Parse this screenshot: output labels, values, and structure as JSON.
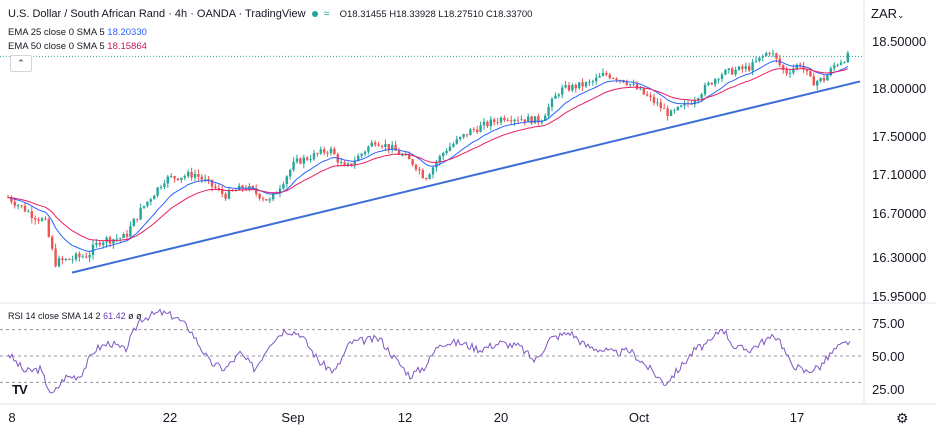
{
  "header": {
    "title": "U.S. Dollar / South African Rand · 4h · OANDA · TradingView",
    "market_icon": "market-open-dot-icon",
    "ohlc_o": "O18.31455",
    "ohlc_h": "H18.33928",
    "ohlc_l": "L18.27510",
    "ohlc_c": "C18.33700"
  },
  "indicators": {
    "ema1_label": "EMA 25 close 0 SMA 5",
    "ema1_value": "18.20330",
    "ema2_label": "EMA 50 close 0 SMA 5",
    "ema2_value": "18.15864",
    "rsi_label": "RSI 14 close SMA 14 2",
    "rsi_value": "61.42",
    "rsi_extra": "ø ø"
  },
  "currency": "ZAR",
  "currency_menu_icon": "chevron-down-icon",
  "collapse_icon": "chevron-up-icon",
  "logo_text": "TV",
  "settings_icon": "gear-icon",
  "colors": {
    "up": "#26a69a",
    "down": "#ef5350",
    "ema25": "#2962ff",
    "ema50": "#e91e63",
    "trendline": "#3c6fd6",
    "rsi": "#7e57c2"
  },
  "chart_data": [
    {
      "type": "candlestick",
      "title": "U.S. Dollar / South African Rand · 4h · OANDA · TradingView",
      "y_ticks": [
        "18.50000",
        "18.00000",
        "17.50000",
        "17.10000",
        "16.70000",
        "16.30000",
        "15.95000"
      ],
      "x_ticks": [
        "8",
        "22",
        "Sep",
        "12",
        "20",
        "Oct",
        "17"
      ],
      "ylim": [
        15.95,
        18.55
      ],
      "last_price_line": 18.337,
      "close_path": [
        {
          "x": 8,
          "close": 16.86
        },
        {
          "x": 30,
          "close": 16.7
        },
        {
          "x": 45,
          "close": 16.62
        },
        {
          "x": 55,
          "close": 16.25
        },
        {
          "x": 70,
          "close": 16.28
        },
        {
          "x": 88,
          "close": 16.32
        },
        {
          "x": 100,
          "close": 16.45
        },
        {
          "x": 125,
          "close": 16.48
        },
        {
          "x": 140,
          "close": 16.72
        },
        {
          "x": 165,
          "close": 17.05
        },
        {
          "x": 195,
          "close": 17.1
        },
        {
          "x": 225,
          "close": 16.88
        },
        {
          "x": 245,
          "close": 16.97
        },
        {
          "x": 270,
          "close": 16.82
        },
        {
          "x": 295,
          "close": 17.22
        },
        {
          "x": 330,
          "close": 17.36
        },
        {
          "x": 345,
          "close": 17.15
        },
        {
          "x": 375,
          "close": 17.45
        },
        {
          "x": 390,
          "close": 17.38
        },
        {
          "x": 415,
          "close": 17.2
        },
        {
          "x": 425,
          "close": 17.06
        },
        {
          "x": 445,
          "close": 17.35
        },
        {
          "x": 470,
          "close": 17.55
        },
        {
          "x": 505,
          "close": 17.7
        },
        {
          "x": 540,
          "close": 17.66
        },
        {
          "x": 560,
          "close": 17.98
        },
        {
          "x": 590,
          "close": 18.05
        },
        {
          "x": 605,
          "close": 18.15
        },
        {
          "x": 625,
          "close": 18.08
        },
        {
          "x": 655,
          "close": 17.85
        },
        {
          "x": 670,
          "close": 17.72
        },
        {
          "x": 690,
          "close": 17.85
        },
        {
          "x": 720,
          "close": 18.15
        },
        {
          "x": 750,
          "close": 18.22
        },
        {
          "x": 770,
          "close": 18.4
        },
        {
          "x": 785,
          "close": 18.16
        },
        {
          "x": 800,
          "close": 18.26
        },
        {
          "x": 812,
          "close": 18.06
        },
        {
          "x": 825,
          "close": 18.1
        },
        {
          "x": 835,
          "close": 18.25
        },
        {
          "x": 848,
          "close": 18.337
        }
      ],
      "trendline": [
        {
          "x": 72,
          "y": 16.16
        },
        {
          "x": 860,
          "y": 18.07
        }
      ]
    },
    {
      "type": "line",
      "title": "RSI 14 close SMA 14 2",
      "y_ticks": [
        "75.00",
        "50.00",
        "25.00"
      ],
      "ylim": [
        15,
        90
      ],
      "bands": [
        70,
        50,
        30
      ],
      "series": [
        {
          "values": [
            {
              "x": 8,
              "v": 52
            },
            {
              "x": 25,
              "v": 38
            },
            {
              "x": 40,
              "v": 40
            },
            {
              "x": 52,
              "v": 20
            },
            {
              "x": 65,
              "v": 34
            },
            {
              "x": 80,
              "v": 35
            },
            {
              "x": 95,
              "v": 55
            },
            {
              "x": 110,
              "v": 60
            },
            {
              "x": 125,
              "v": 54
            },
            {
              "x": 140,
              "v": 78
            },
            {
              "x": 160,
              "v": 83
            },
            {
              "x": 175,
              "v": 80
            },
            {
              "x": 190,
              "v": 70
            },
            {
              "x": 210,
              "v": 45
            },
            {
              "x": 225,
              "v": 40
            },
            {
              "x": 240,
              "v": 52
            },
            {
              "x": 255,
              "v": 40
            },
            {
              "x": 270,
              "v": 60
            },
            {
              "x": 285,
              "v": 70
            },
            {
              "x": 300,
              "v": 67
            },
            {
              "x": 320,
              "v": 45
            },
            {
              "x": 335,
              "v": 38
            },
            {
              "x": 350,
              "v": 60
            },
            {
              "x": 365,
              "v": 62
            },
            {
              "x": 380,
              "v": 63
            },
            {
              "x": 395,
              "v": 48
            },
            {
              "x": 410,
              "v": 35
            },
            {
              "x": 425,
              "v": 42
            },
            {
              "x": 440,
              "v": 60
            },
            {
              "x": 460,
              "v": 60
            },
            {
              "x": 480,
              "v": 55
            },
            {
              "x": 500,
              "v": 60
            },
            {
              "x": 520,
              "v": 57
            },
            {
              "x": 535,
              "v": 46
            },
            {
              "x": 550,
              "v": 63
            },
            {
              "x": 570,
              "v": 68
            },
            {
              "x": 585,
              "v": 58
            },
            {
              "x": 600,
              "v": 55
            },
            {
              "x": 615,
              "v": 52
            },
            {
              "x": 630,
              "v": 54
            },
            {
              "x": 650,
              "v": 40
            },
            {
              "x": 665,
              "v": 29
            },
            {
              "x": 680,
              "v": 41
            },
            {
              "x": 695,
              "v": 55
            },
            {
              "x": 710,
              "v": 60
            },
            {
              "x": 722,
              "v": 72
            },
            {
              "x": 735,
              "v": 56
            },
            {
              "x": 750,
              "v": 55
            },
            {
              "x": 765,
              "v": 62
            },
            {
              "x": 778,
              "v": 65
            },
            {
              "x": 790,
              "v": 45
            },
            {
              "x": 805,
              "v": 38
            },
            {
              "x": 820,
              "v": 42
            },
            {
              "x": 835,
              "v": 55
            },
            {
              "x": 850,
              "v": 61.42
            }
          ]
        }
      ]
    }
  ]
}
